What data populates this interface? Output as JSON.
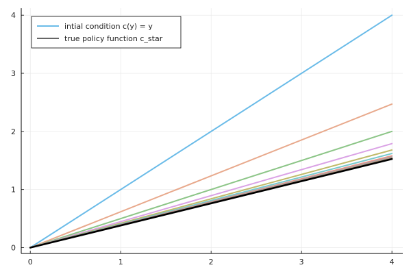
{
  "chart_data": {
    "type": "line",
    "title": "",
    "xlabel": "",
    "ylabel": "",
    "xlim": [
      -0.1,
      4.12
    ],
    "ylim": [
      -0.1,
      4.12
    ],
    "xticks": [
      0,
      1,
      2,
      3,
      4
    ],
    "yticks": [
      0,
      1,
      2,
      3,
      4
    ],
    "grid": true,
    "legend_position": "top-left",
    "series": [
      {
        "name": "intial condition c(y) = y",
        "x": [
          0,
          4
        ],
        "y": [
          0,
          4.0
        ],
        "color": "#5ab4e5",
        "in_legend": true
      },
      {
        "x": [
          0,
          4
        ],
        "y": [
          0,
          2.47
        ],
        "color": "#e6a07f",
        "in_legend": false
      },
      {
        "x": [
          0,
          4
        ],
        "y": [
          0,
          2.0
        ],
        "color": "#7fbf7a",
        "in_legend": false
      },
      {
        "x": [
          0,
          4
        ],
        "y": [
          0,
          1.79
        ],
        "color": "#d698e2",
        "in_legend": false
      },
      {
        "x": [
          0,
          4
        ],
        "y": [
          0,
          1.68
        ],
        "color": "#b9b25a",
        "in_legend": false
      },
      {
        "x": [
          0,
          4
        ],
        "y": [
          0,
          1.62
        ],
        "color": "#68c3c9",
        "in_legend": false
      },
      {
        "x": [
          0,
          4
        ],
        "y": [
          0,
          1.58
        ],
        "color": "#e58a7a",
        "in_legend": false
      },
      {
        "x": [
          0,
          4
        ],
        "y": [
          0,
          1.56
        ],
        "color": "#9a9fb0",
        "in_legend": false
      },
      {
        "x": [
          0,
          4
        ],
        "y": [
          0,
          1.545
        ],
        "color": "#c89a6a",
        "in_legend": false
      },
      {
        "x": [
          0,
          4
        ],
        "y": [
          0,
          1.535
        ],
        "color": "#8c8c8c",
        "in_legend": false
      },
      {
        "name": "true policy function c_star",
        "x": [
          0,
          4
        ],
        "y": [
          0,
          1.525
        ],
        "color": "#000000",
        "in_legend": true
      }
    ]
  }
}
